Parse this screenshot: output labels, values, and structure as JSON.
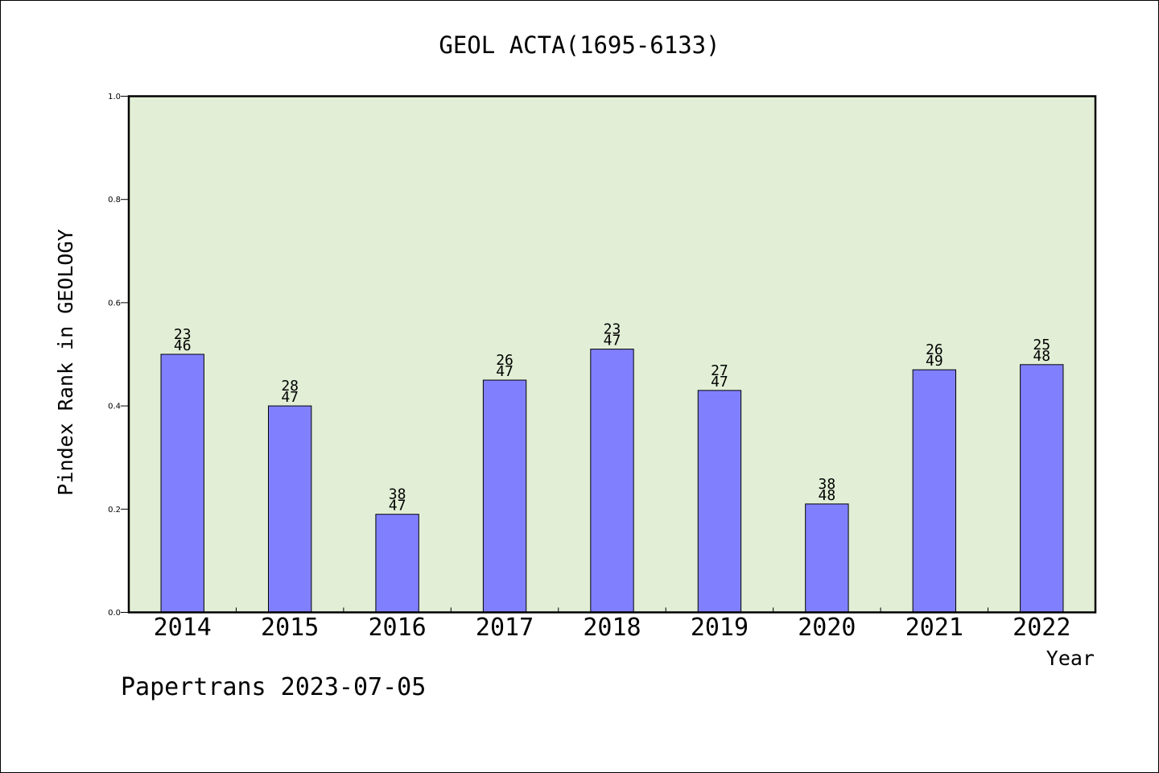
{
  "chart_data": {
    "type": "bar",
    "title": "GEOL ACTA(1695-6133)",
    "xlabel": "Year",
    "ylabel": "Pindex Rank in GEOLOGY",
    "ylim": [
      0,
      1.0
    ],
    "yticks": [
      0.0,
      0.2,
      0.4,
      0.6,
      0.8,
      1.0
    ],
    "yticklabels": [
      "0.0",
      "0.2",
      "0.4",
      "0.6",
      "0.8",
      "1.0"
    ],
    "categories": [
      "2014",
      "2015",
      "2016",
      "2017",
      "2018",
      "2019",
      "2020",
      "2021",
      "2022"
    ],
    "values": [
      0.5,
      0.4,
      0.19,
      0.45,
      0.51,
      0.43,
      0.21,
      0.47,
      0.48
    ],
    "rank": [
      "23",
      "28",
      "38",
      "26",
      "23",
      "27",
      "38",
      "26",
      "25"
    ],
    "total": [
      "46",
      "47",
      "47",
      "47",
      "47",
      "47",
      "48",
      "49",
      "48"
    ],
    "grid": false,
    "plot_background": "#e2efd6",
    "bar_color": "#8080ff"
  },
  "footer": "Papertrans 2023-07-05"
}
